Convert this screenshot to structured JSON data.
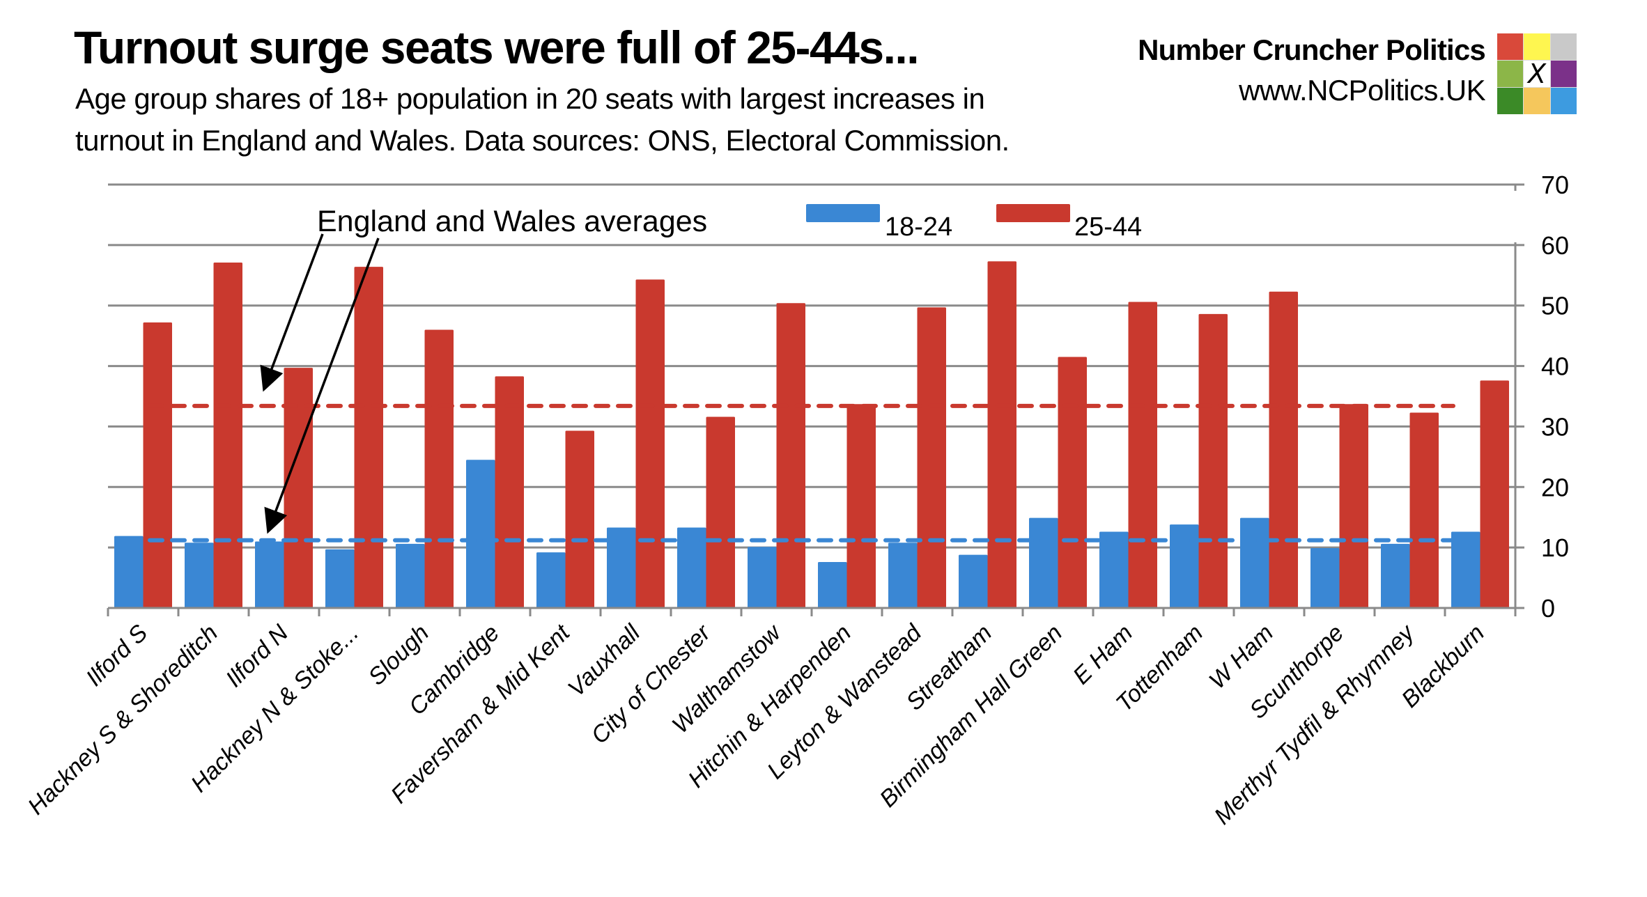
{
  "header": {
    "title": "Turnout surge seats were full of 25-44s...",
    "subtitle_lines": [
      "Age group shares of 18+ population in 20 seats with largest increases in",
      "turnout in England and Wales. Data sources: ONS, Electoral Commission."
    ]
  },
  "brand": {
    "name": "Number Cruncher Politics",
    "url": "www.NCPolitics.UK",
    "logo_icon": "ballot-x-grid-icon",
    "logo_mark": "X",
    "logo_colors": [
      "#d9493a",
      "#fef650",
      "#c9c9c9",
      "#8cb648",
      "#ffffff",
      "#7b3189",
      "#3b8a27",
      "#f5c75c",
      "#3d9be0"
    ]
  },
  "colors": {
    "series_18_24": "#3a87d4",
    "series_25_44": "#c9392e",
    "gridline": "#8a8a8a",
    "text": "#000000"
  },
  "chart_data": {
    "type": "bar",
    "title": "Turnout surge seats were full of 25-44s...",
    "xlabel": "",
    "ylabel": "",
    "y_axis_side": "right",
    "ylim": [
      0,
      70
    ],
    "yticks": [
      0,
      10,
      20,
      30,
      40,
      50,
      60,
      70
    ],
    "grid": true,
    "legend_position": "top-center",
    "categories": [
      "Ilford S",
      "Hackney S & Shoreditch",
      "Ilford N",
      "Hackney N & Stoke...",
      "Slough",
      "Cambridge",
      "Faversham & Mid Kent",
      "Vauxhall",
      "City of Chester",
      "Walthamstow",
      "Hitchin & Harpenden",
      "Leyton & Wanstead",
      "Streatham",
      "Birmingham Hall Green",
      "E Ham",
      "Tottenham",
      "W Ham",
      "Scunthorpe",
      "Merthyr Tydfil & Rhymney",
      "Blackburn"
    ],
    "series": [
      {
        "name": "18-24",
        "color": "#3a87d4",
        "values": [
          11.9,
          10.8,
          11.0,
          9.7,
          10.6,
          24.5,
          9.2,
          13.3,
          13.3,
          10.1,
          7.6,
          10.8,
          8.8,
          14.9,
          12.6,
          13.8,
          14.9,
          9.9,
          10.6,
          12.6
        ]
      },
      {
        "name": "25-44",
        "color": "#c9392e",
        "values": [
          47.2,
          57.1,
          39.7,
          56.4,
          46.0,
          38.3,
          29.3,
          54.3,
          31.6,
          50.4,
          33.7,
          49.7,
          57.3,
          41.5,
          50.6,
          48.6,
          52.3,
          33.7,
          32.3,
          37.6
        ]
      }
    ],
    "reference_lines": [
      {
        "name": "England and Wales average 18-24",
        "series": "18-24",
        "value": 11.2,
        "style": "dashed",
        "color": "#3a87d4"
      },
      {
        "name": "England and Wales average 25-44",
        "series": "25-44",
        "value": 33.4,
        "style": "dashed",
        "color": "#c9392e"
      }
    ],
    "annotations": [
      {
        "text": "England and Wales averages",
        "points_to": [
          "England and Wales average 25-44",
          "England and Wales average 18-24"
        ]
      }
    ]
  }
}
